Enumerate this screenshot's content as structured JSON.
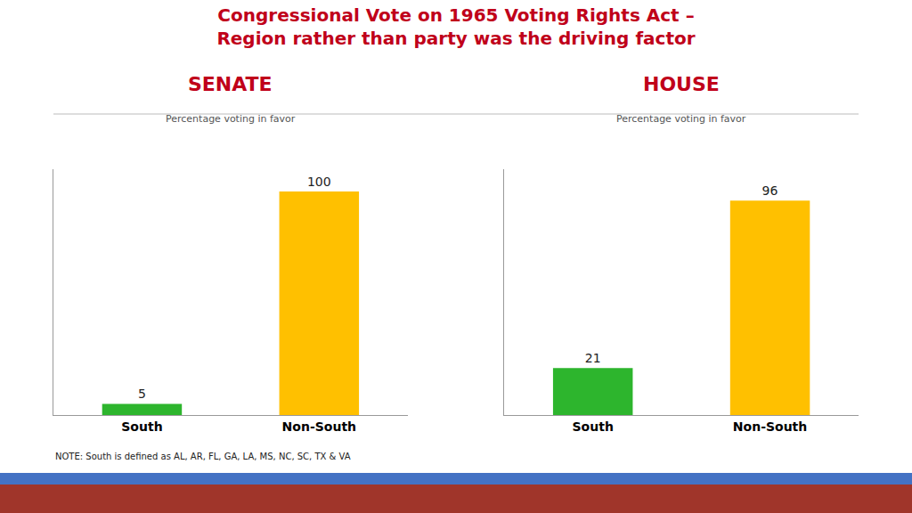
{
  "title": "Congressional Vote on 1965 Voting Rights Act –\nRegion rather than party was the driving factor",
  "annotations": [
    "NOTE: South is defined as AL, AR, FL, GA, LA, MS, NC, SC, TX & VA"
  ],
  "chart_data": [
    {
      "type": "bar",
      "title": "SENATE",
      "subtitle": "Percentage voting in favor",
      "categories": [
        "South",
        "Non-South"
      ],
      "values": [
        5,
        100
      ],
      "colors": [
        "#2DB52D",
        "#FFC000"
      ],
      "ylim": [
        0,
        110
      ],
      "data_labels": true,
      "tick_labels": "x",
      "grid": false
    },
    {
      "type": "bar",
      "title": "HOUSE",
      "subtitle": "Percentage voting in favor",
      "categories": [
        "South",
        "Non-South"
      ],
      "values": [
        21,
        96
      ],
      "colors": [
        "#2DB52D",
        "#FFC000"
      ],
      "ylim": [
        0,
        110
      ],
      "data_labels": true,
      "tick_labels": "x",
      "grid": false
    }
  ]
}
